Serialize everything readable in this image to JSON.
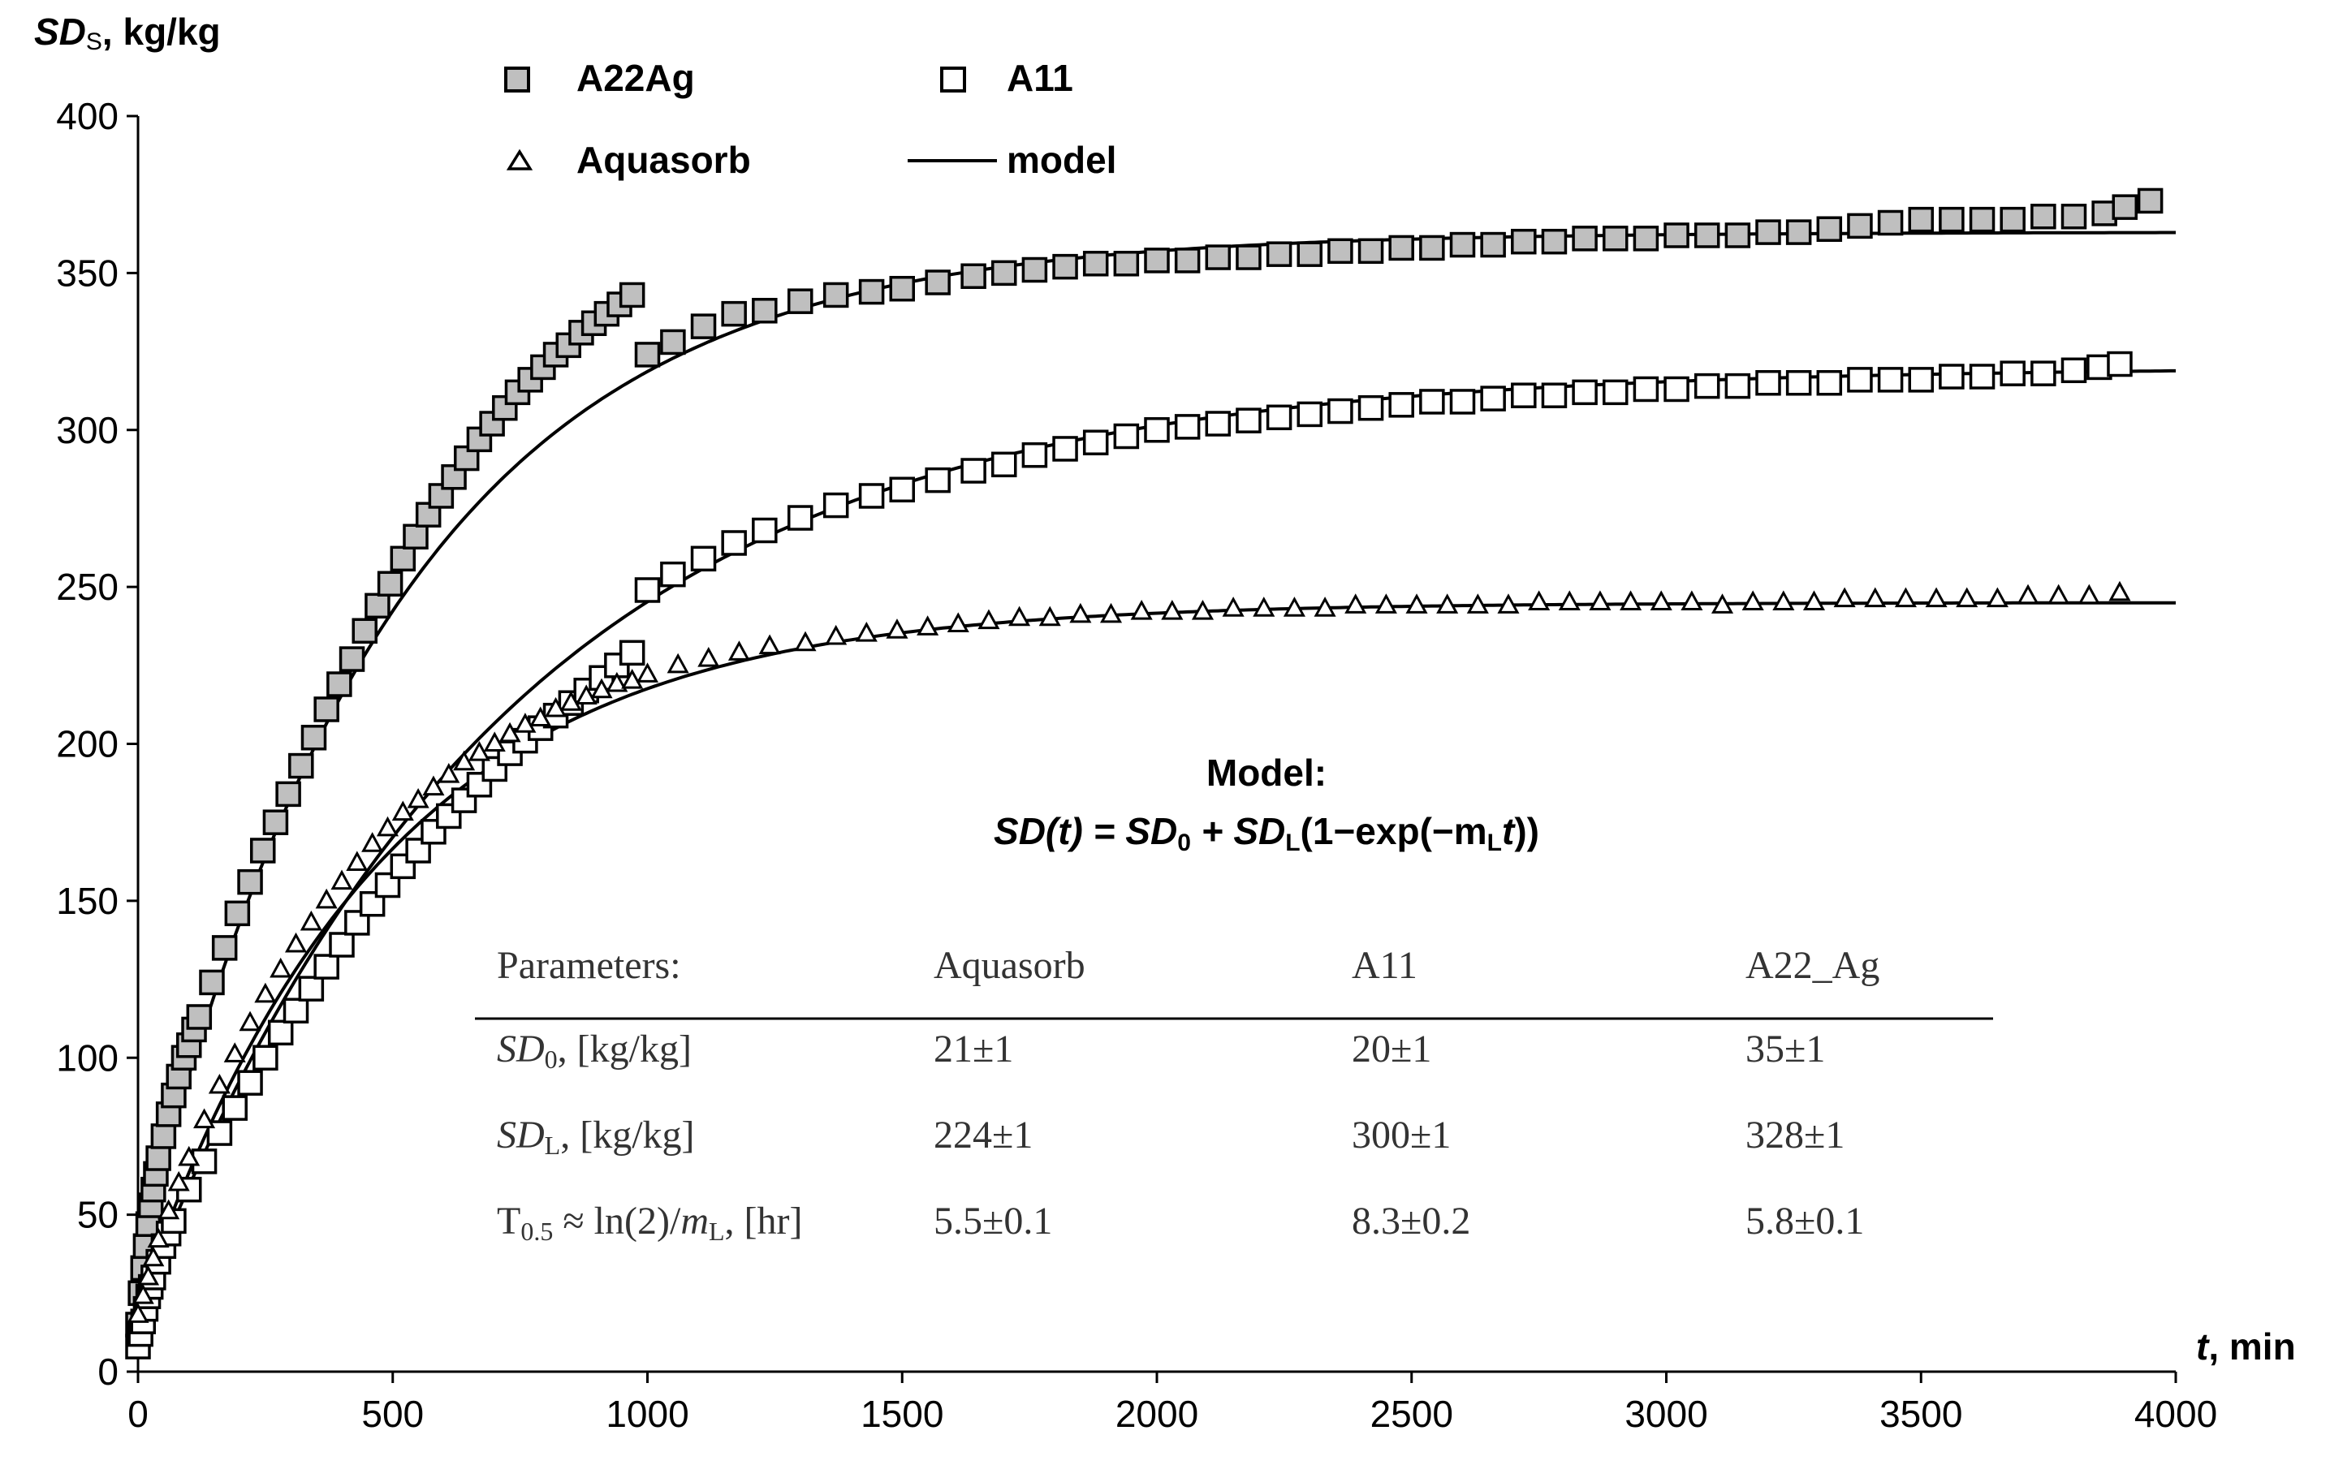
{
  "chart_data": {
    "type": "scatter",
    "title": "",
    "ylabel_italic": "SD",
    "ylabel_sub": "S",
    "ylabel_unit": ", kg/kg",
    "xlabel_italic": "t",
    "xlabel_unit": ", min",
    "xlim": [
      0,
      4000
    ],
    "ylim": [
      0,
      400
    ],
    "xticks": [
      0,
      500,
      1000,
      1500,
      2000,
      2500,
      3000,
      3500,
      4000
    ],
    "yticks": [
      0,
      50,
      100,
      150,
      200,
      250,
      300,
      350,
      400
    ],
    "grid": false,
    "legend": {
      "placement": "top",
      "entries": [
        {
          "label": "A22Ag",
          "marker": "square-gray"
        },
        {
          "label": "A11",
          "marker": "square-white"
        },
        {
          "label": "Aquasorb",
          "marker": "triangle"
        },
        {
          "label": "model",
          "marker": "line"
        }
      ]
    },
    "series": [
      {
        "name": "A22Ag",
        "marker": "square-gray",
        "x": [
          0,
          5,
          10,
          15,
          20,
          25,
          30,
          35,
          40,
          50,
          60,
          70,
          80,
          90,
          100,
          110,
          120,
          145,
          170,
          195,
          220,
          245,
          270,
          295,
          320,
          345,
          370,
          395,
          420,
          445,
          470,
          495,
          520,
          545,
          570,
          595,
          620,
          645,
          670,
          695,
          720,
          745,
          770,
          795,
          820,
          845,
          870,
          895,
          920,
          945,
          970,
          1000,
          1050,
          1110,
          1170,
          1230,
          1300,
          1370,
          1440,
          1500,
          1570,
          1640,
          1700,
          1760,
          1820,
          1880,
          1940,
          2000,
          2060,
          2120,
          2180,
          2240,
          2300,
          2360,
          2420,
          2480,
          2540,
          2600,
          2660,
          2720,
          2780,
          2840,
          2900,
          2960,
          3020,
          3080,
          3140,
          3200,
          3260,
          3320,
          3380,
          3440,
          3500,
          3560,
          3620,
          3680,
          3740,
          3800,
          3860,
          3900,
          3950
        ],
        "y": [
          15,
          25,
          33,
          40,
          47,
          53,
          58,
          63,
          68,
          75,
          82,
          88,
          94,
          100,
          104,
          109,
          113,
          124,
          135,
          146,
          156,
          166,
          175,
          184,
          193,
          202,
          211,
          219,
          227,
          236,
          244,
          251,
          259,
          266,
          273,
          279,
          285,
          291,
          297,
          302,
          307,
          312,
          316,
          320,
          324,
          327,
          331,
          334,
          337,
          340,
          343,
          324,
          328,
          333,
          337,
          338,
          341,
          343,
          344,
          345,
          347,
          349,
          350,
          351,
          352,
          353,
          353,
          354,
          354,
          355,
          355,
          356,
          356,
          357,
          357,
          358,
          358,
          359,
          359,
          360,
          360,
          361,
          361,
          361,
          362,
          362,
          362,
          363,
          363,
          364,
          365,
          366,
          367,
          367,
          367,
          367,
          368,
          368,
          369,
          371,
          373
        ]
      },
      {
        "name": "A11",
        "marker": "square-white",
        "x": [
          0,
          5,
          10,
          15,
          20,
          25,
          30,
          40,
          50,
          60,
          70,
          100,
          130,
          160,
          190,
          220,
          250,
          280,
          310,
          340,
          370,
          400,
          430,
          460,
          490,
          520,
          550,
          580,
          610,
          640,
          670,
          700,
          730,
          760,
          790,
          820,
          850,
          880,
          910,
          940,
          970,
          1000,
          1050,
          1110,
          1170,
          1230,
          1300,
          1370,
          1440,
          1500,
          1570,
          1640,
          1700,
          1760,
          1820,
          1880,
          1940,
          2000,
          2060,
          2120,
          2180,
          2240,
          2300,
          2360,
          2420,
          2480,
          2540,
          2600,
          2660,
          2720,
          2780,
          2840,
          2900,
          2960,
          3020,
          3080,
          3140,
          3200,
          3260,
          3320,
          3380,
          3440,
          3500,
          3560,
          3620,
          3680,
          3740,
          3800,
          3850,
          3890
        ],
        "y": [
          8,
          12,
          16,
          20,
          24,
          27,
          30,
          35,
          40,
          44,
          48,
          58,
          67,
          76,
          84,
          92,
          100,
          108,
          115,
          122,
          129,
          136,
          143,
          149,
          155,
          161,
          166,
          172,
          177,
          182,
          187,
          192,
          197,
          201,
          205,
          209,
          213,
          217,
          221,
          225,
          229,
          249,
          254,
          259,
          264,
          268,
          272,
          276,
          279,
          281,
          284,
          287,
          289,
          292,
          294,
          296,
          298,
          300,
          301,
          302,
          303,
          304,
          305,
          306,
          307,
          308,
          309,
          309,
          310,
          311,
          311,
          312,
          312,
          313,
          313,
          314,
          314,
          315,
          315,
          315,
          316,
          316,
          316,
          317,
          317,
          318,
          318,
          319,
          320,
          321
        ]
      },
      {
        "name": "Aquasorb",
        "marker": "triangle",
        "x": [
          0,
          10,
          20,
          30,
          40,
          60,
          80,
          100,
          130,
          160,
          190,
          220,
          250,
          280,
          310,
          340,
          370,
          400,
          430,
          460,
          490,
          520,
          550,
          580,
          610,
          640,
          670,
          700,
          730,
          760,
          790,
          820,
          850,
          880,
          910,
          940,
          970,
          1000,
          1060,
          1120,
          1180,
          1240,
          1310,
          1370,
          1430,
          1490,
          1550,
          1610,
          1670,
          1730,
          1790,
          1850,
          1910,
          1970,
          2030,
          2090,
          2150,
          2210,
          2270,
          2330,
          2390,
          2450,
          2510,
          2570,
          2630,
          2690,
          2750,
          2810,
          2870,
          2930,
          2990,
          3050,
          3110,
          3170,
          3230,
          3290,
          3350,
          3410,
          3470,
          3530,
          3590,
          3650,
          3710,
          3770,
          3830,
          3890
        ],
        "y": [
          18,
          24,
          30,
          36,
          42,
          51,
          60,
          68,
          80,
          91,
          101,
          111,
          120,
          128,
          136,
          143,
          150,
          156,
          162,
          168,
          173,
          178,
          182,
          186,
          190,
          194,
          197,
          200,
          203,
          206,
          208,
          211,
          213,
          215,
          217,
          219,
          220,
          222,
          225,
          227,
          229,
          231,
          232,
          234,
          235,
          236,
          237,
          238,
          239,
          240,
          240,
          241,
          241,
          242,
          242,
          242,
          243,
          243,
          243,
          243,
          244,
          244,
          244,
          244,
          244,
          244,
          245,
          245,
          245,
          245,
          245,
          245,
          244,
          245,
          245,
          245,
          246,
          246,
          246,
          246,
          246,
          246,
          247,
          247,
          247,
          248
        ]
      }
    ],
    "model": [
      {
        "name": "A22Ag",
        "SD0": 35,
        "SDL": 328,
        "mL": 0.002
      },
      {
        "name": "A11",
        "SD0": 20,
        "SDL": 300,
        "mL": 0.00139
      },
      {
        "name": "Aquasorb",
        "SD0": 21,
        "SDL": 224,
        "mL": 0.0021
      }
    ]
  },
  "annotation": {
    "model_heading": "Model:",
    "formula": {
      "lhs": "SD(t) = SD",
      "sub0": "0",
      "plus": " + SD",
      "subL": "L",
      "open": "(1−exp(−m",
      "subL2": "L",
      "t": "t",
      "close": "))"
    }
  },
  "table": {
    "header": [
      "Parameters:",
      "Aquasorb",
      "A11",
      "A22_Ag"
    ],
    "rows": [
      {
        "label_italic": "SD",
        "label_sub": "0",
        "label_rest": ", [kg/kg]",
        "values": [
          "21±1",
          "20±1",
          "35±1"
        ]
      },
      {
        "label_italic": "SD",
        "label_sub": "L",
        "label_rest": ", [kg/kg]",
        "values": [
          "224±1",
          "300±1",
          "328±1"
        ]
      },
      {
        "label_pre": "T",
        "label_pre_sub": "0.5",
        "label_mid": " ≈ ln(2)/",
        "label_italic": "m",
        "label_sub": "L",
        "label_rest": ", [hr]",
        "values": [
          "5.5±0.1",
          "8.3±0.2",
          "5.8±0.1"
        ]
      }
    ]
  }
}
